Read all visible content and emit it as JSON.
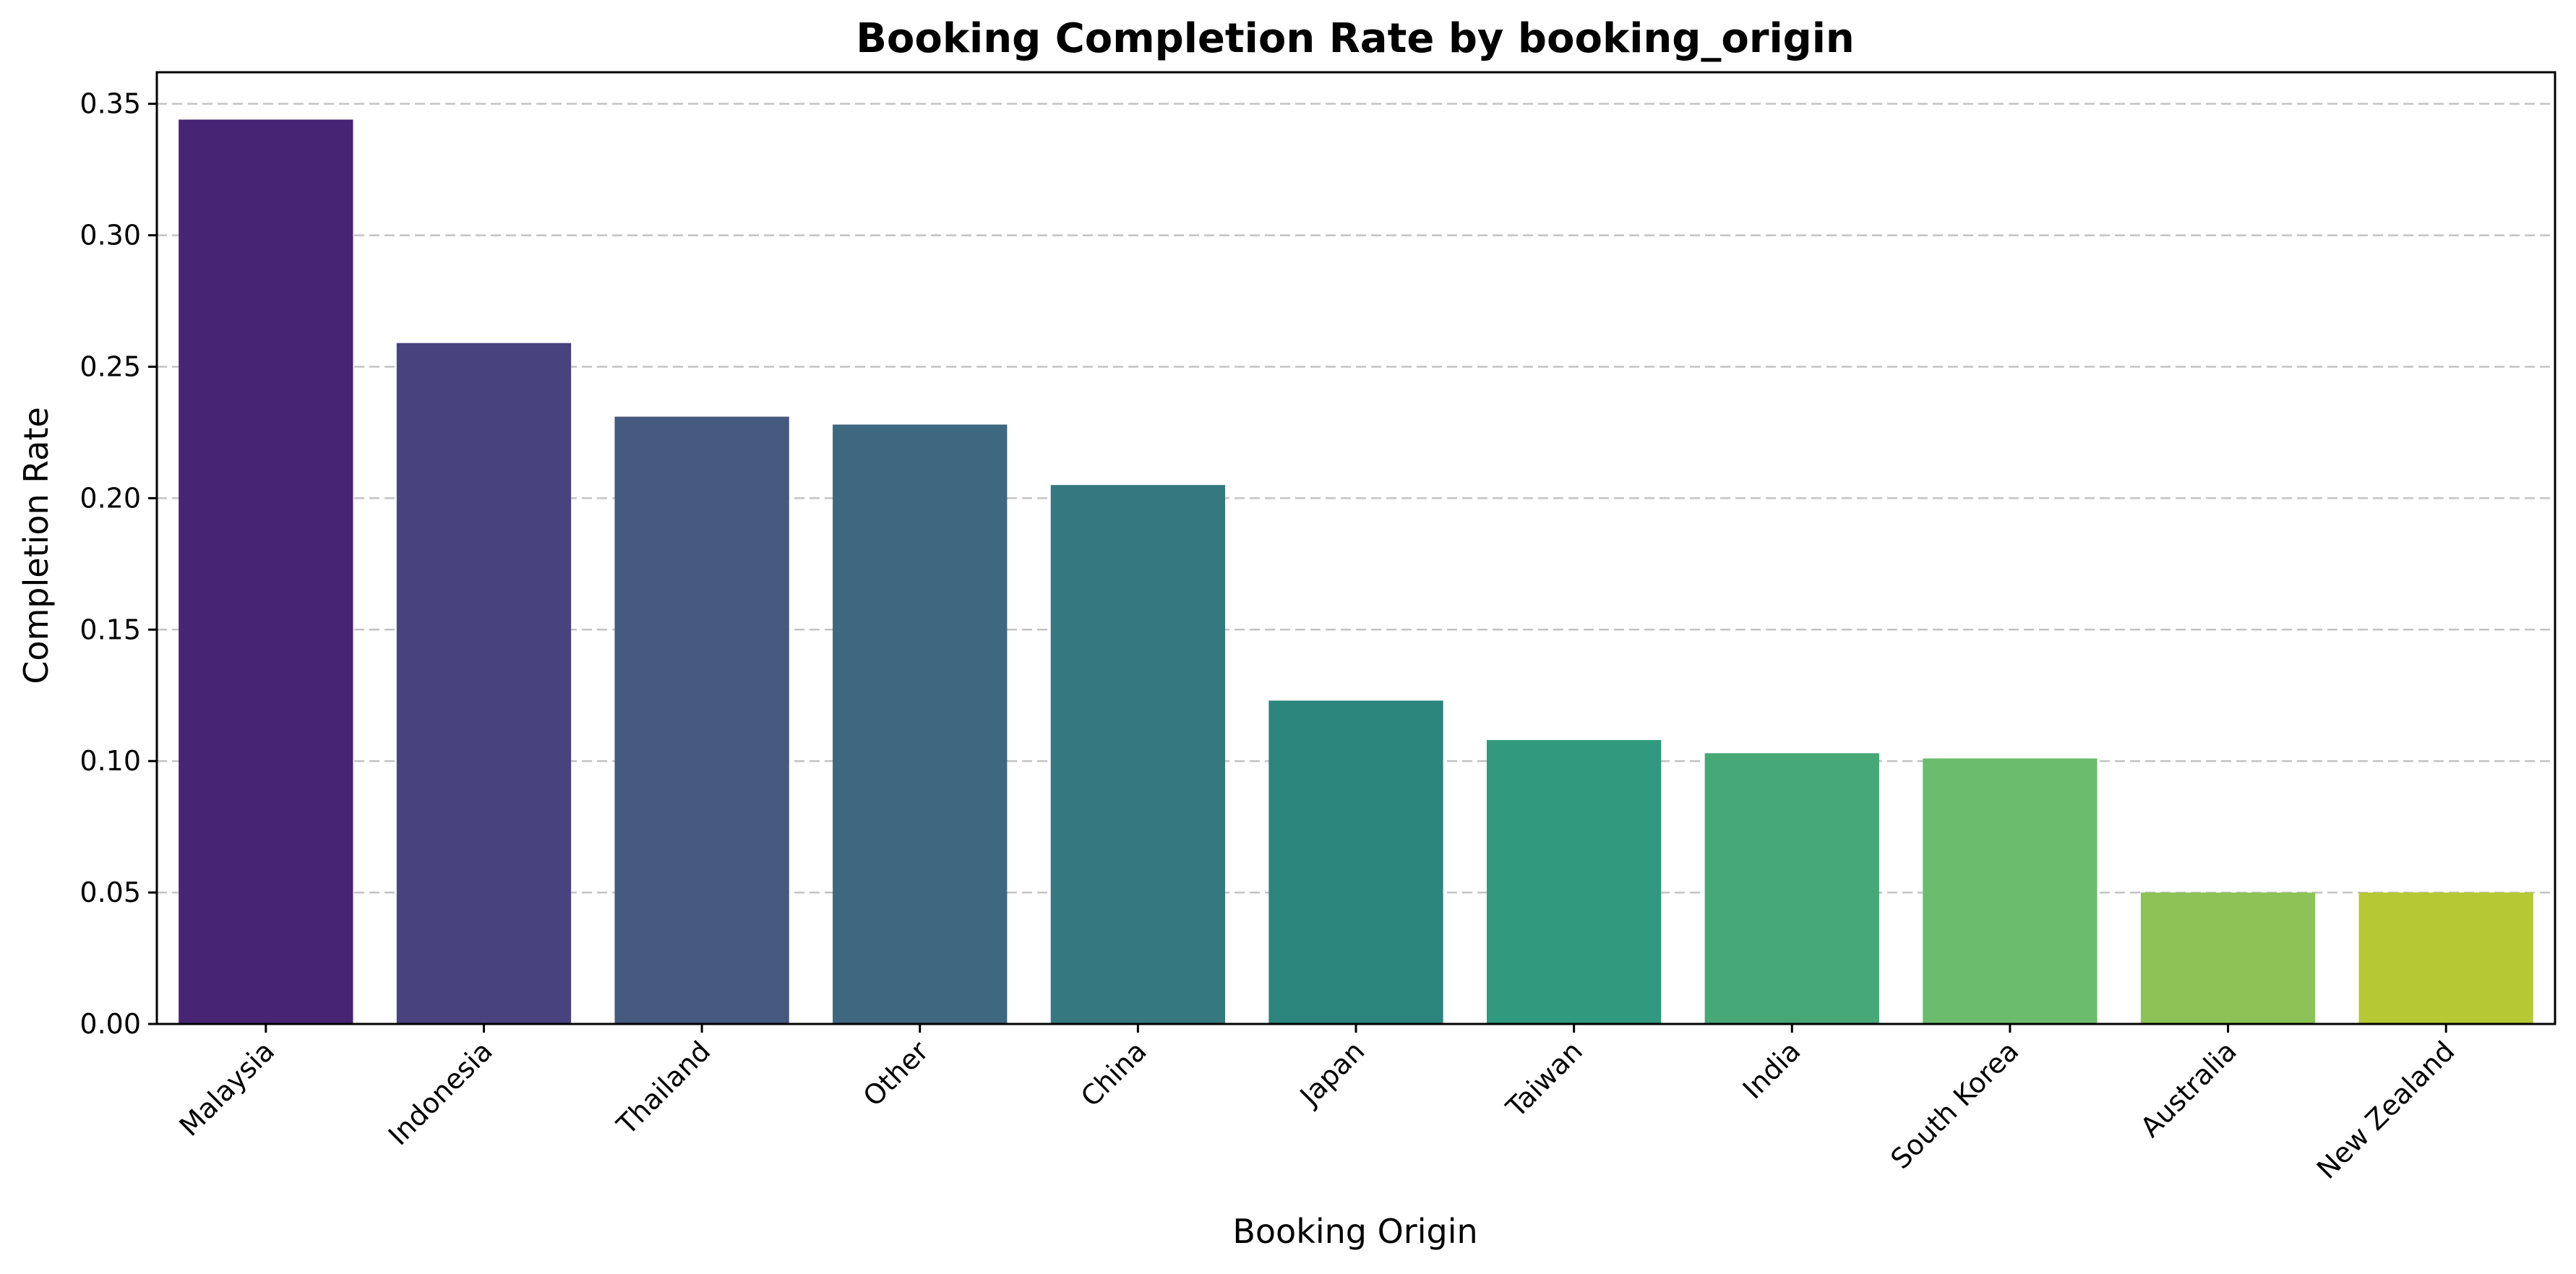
{
  "chart_data": {
    "type": "bar",
    "title": "Booking Completion Rate by booking_origin",
    "xlabel": "Booking Origin",
    "ylabel": "Completion Rate",
    "categories": [
      "Malaysia",
      "Indonesia",
      "Thailand",
      "Other",
      "China",
      "Japan",
      "Taiwan",
      "India",
      "South Korea",
      "Australia",
      "New Zealand"
    ],
    "values": [
      0.344,
      0.259,
      0.231,
      0.228,
      0.205,
      0.123,
      0.108,
      0.103,
      0.101,
      0.05,
      0.05
    ],
    "colors": [
      "#482475",
      "#48427e",
      "#45597f",
      "#3e6880",
      "#35787f",
      "#2c857c",
      "#319a7e",
      "#47a877",
      "#6bbd6d",
      "#8dc356",
      "#b5c935"
    ],
    "ylim": [
      0,
      0.362
    ],
    "yticks": [
      0.0,
      0.05,
      0.1,
      0.15,
      0.2,
      0.25,
      0.3,
      0.35
    ],
    "ytick_labels": [
      "0.00",
      "0.05",
      "0.10",
      "0.15",
      "0.20",
      "0.25",
      "0.30",
      "0.35"
    ],
    "grid": "y-dashed",
    "legend": "none"
  }
}
